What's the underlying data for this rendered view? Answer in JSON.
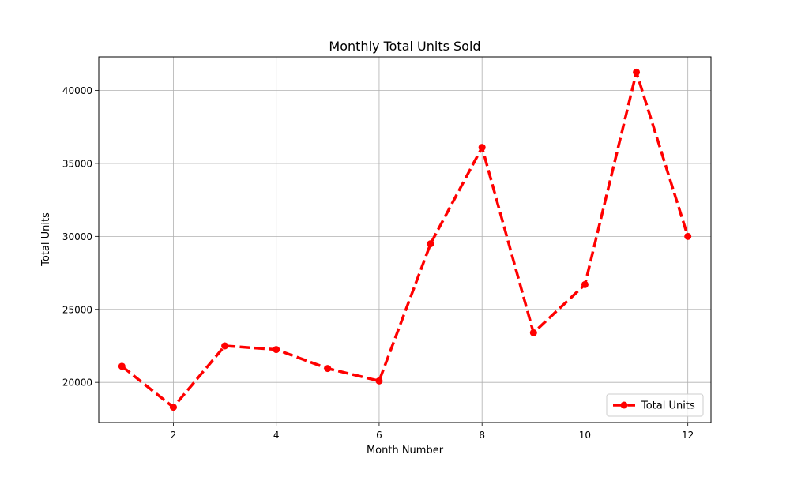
{
  "chart_data": {
    "type": "line",
    "title": "Monthly Total Units Sold",
    "xlabel": "Month Number",
    "ylabel": "Total Units",
    "xlim": [
      0.55,
      12.45
    ],
    "ylim": [
      17250,
      42300
    ],
    "xticks": [
      2,
      4,
      6,
      8,
      10,
      12
    ],
    "yticks": [
      20000,
      25000,
      30000,
      35000,
      40000
    ],
    "grid": true,
    "legend_position": "lower right",
    "series": [
      {
        "name": "Total Units",
        "color": "#ff0000",
        "line_style": "dashed",
        "marker": "circle",
        "x": [
          1,
          2,
          3,
          4,
          5,
          6,
          7,
          8,
          9,
          10,
          11,
          12
        ],
        "y": [
          21100,
          18300,
          22500,
          22250,
          20950,
          20100,
          29500,
          36100,
          23400,
          26700,
          41250,
          30000
        ]
      }
    ]
  }
}
